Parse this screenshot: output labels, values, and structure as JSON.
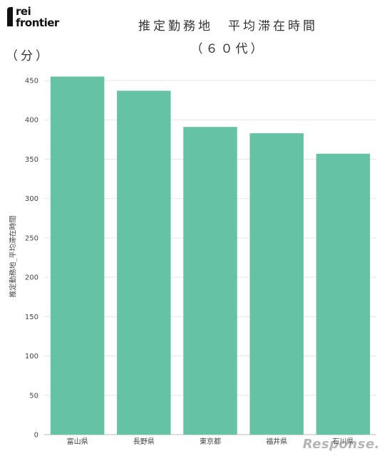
{
  "logo": {
    "line1": "rei",
    "line2": "frontier"
  },
  "watermark": "Response.",
  "colors": {
    "bar": "#66c2a5",
    "grid": "#e6e6e6",
    "axis": "#bbbbbb"
  },
  "chart_data": {
    "type": "bar",
    "title": "推定勤務地　平均滞在時間",
    "subtitle": "（６０代）",
    "unit": "（分）",
    "xlabel": "",
    "ylabel": "推定勤務地_平均滞在時間",
    "categories": [
      "富山県",
      "長野県",
      "東京都",
      "福井県",
      "石川県"
    ],
    "values": [
      455,
      437,
      391,
      383,
      357
    ],
    "ylim": [
      0,
      450
    ],
    "yticks": [
      0,
      50,
      100,
      150,
      200,
      250,
      300,
      350,
      400,
      450
    ],
    "grid": true,
    "legend": "none"
  }
}
